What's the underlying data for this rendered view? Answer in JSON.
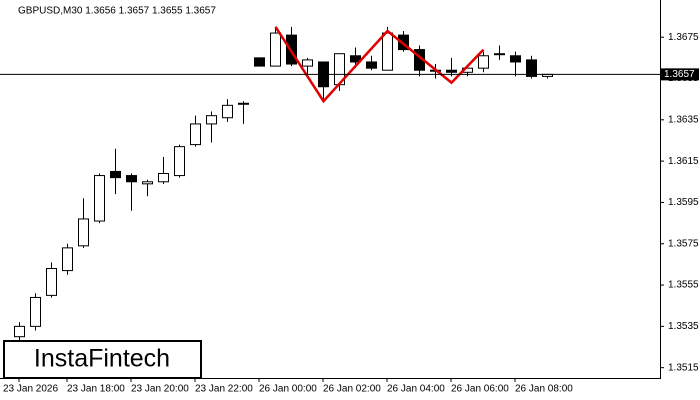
{
  "chart_data": {
    "type": "candlestick",
    "title": "GBPUSD,M30  1.3656 1.3657 1.3655 1.3657",
    "watermark": "InstaFintech",
    "categories": [
      "23 Jan 2026",
      null,
      null,
      "23 Jan 18:00",
      null,
      null,
      null,
      "23 Jan 20:00",
      null,
      null,
      null,
      "23 Jan 22:00",
      null,
      null,
      null,
      "26 Jan 00:00",
      null,
      null,
      null,
      "26 Jan 02:00",
      null,
      null,
      null,
      "26 Jan 04:00",
      null,
      null,
      null,
      "26 Jan 06:00",
      null,
      null,
      null,
      "26 Jan 08:00",
      null,
      null
    ],
    "open": [
      1.353,
      1.3535,
      1.355,
      1.3562,
      1.3574,
      1.3586,
      1.361,
      1.3608,
      1.3604,
      1.3605,
      1.3608,
      1.3623,
      1.3633,
      1.3636,
      1.3643,
      1.3665,
      1.3661,
      1.3676,
      1.3661,
      1.3663,
      1.3652,
      1.3666,
      1.3663,
      1.3659,
      1.3676,
      1.3669,
      1.3659,
      1.3659,
      1.3658,
      1.366,
      1.3667,
      1.3666,
      1.3664,
      1.3656
    ],
    "high": [
      1.3537,
      1.3551,
      1.3566,
      1.3575,
      1.3597,
      1.3609,
      1.3621,
      1.3609,
      1.3606,
      1.3617,
      1.3623,
      1.3637,
      1.3639,
      1.3645,
      1.3644,
      1.3665,
      1.368,
      1.368,
      1.3665,
      1.3663,
      1.3667,
      1.367,
      1.3666,
      1.368,
      1.3678,
      1.3671,
      1.3662,
      1.3665,
      1.3661,
      1.3668,
      1.3671,
      1.3668,
      1.3666,
      1.3657
    ],
    "low": [
      1.3528,
      1.3533,
      1.3549,
      1.356,
      1.3573,
      1.3585,
      1.3599,
      1.3591,
      1.3598,
      1.3604,
      1.3607,
      1.3622,
      1.3624,
      1.3634,
      1.3633,
      1.3661,
      1.3661,
      1.3661,
      1.3657,
      1.3645,
      1.3649,
      1.366,
      1.3659,
      1.3659,
      1.3668,
      1.3656,
      1.3655,
      1.3656,
      1.3656,
      1.3658,
      1.3664,
      1.3656,
      1.3655,
      1.3655
    ],
    "close": [
      1.3535,
      1.3549,
      1.3563,
      1.3573,
      1.3587,
      1.3608,
      1.3607,
      1.3605,
      1.3605,
      1.3609,
      1.3622,
      1.3633,
      1.3637,
      1.3642,
      1.3643,
      1.3661,
      1.3677,
      1.3662,
      1.3664,
      1.3651,
      1.3667,
      1.3663,
      1.366,
      1.3677,
      1.3669,
      1.3659,
      1.3659,
      1.3658,
      1.366,
      1.3666,
      1.3667,
      1.3663,
      1.3656,
      1.3657
    ],
    "up_color": "#ffffff",
    "down_color": "#000000",
    "pattern": {
      "color": "#e00000",
      "x": [
        16,
        19,
        23,
        27,
        29
      ],
      "values": [
        1.368,
        1.3644,
        1.3678,
        1.3653,
        1.3669
      ]
    },
    "current_price": 1.3657,
    "ylim": [
      1.351,
      1.3693
    ],
    "yticks": [
      1.3515,
      1.3535,
      1.3555,
      1.3575,
      1.3595,
      1.3615,
      1.3635,
      1.3655,
      1.3675
    ]
  }
}
